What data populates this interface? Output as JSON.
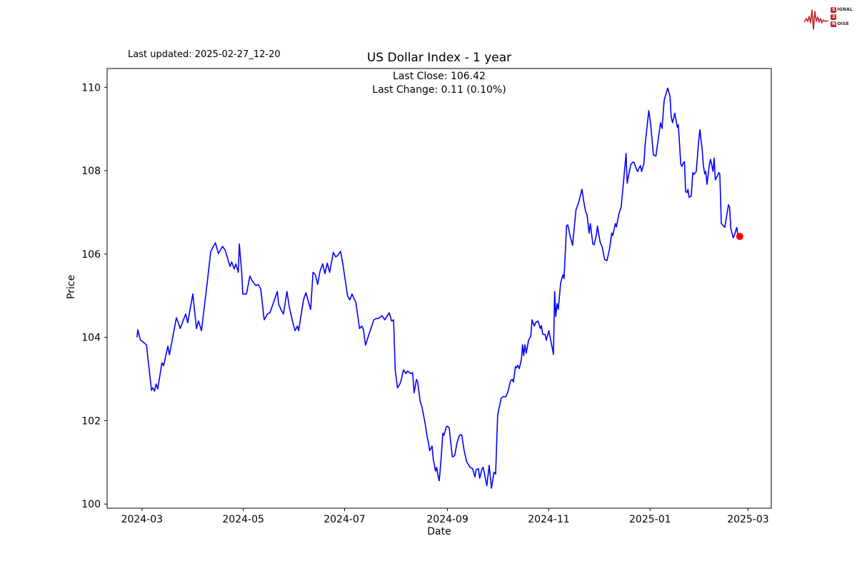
{
  "header": {
    "last_updated": "Last updated: 2025-02-27_12-20"
  },
  "logo": {
    "name": "signal-2-noise",
    "accent": "#c0272d",
    "row1_boxed": "S",
    "row1_rest": "IGNAL",
    "row2_boxed": "2",
    "row2_rest": "",
    "row3_boxed": "N",
    "row3_rest": "OISE"
  },
  "chart_data": {
    "type": "line",
    "title": "US Dollar Index - 1 year",
    "xlabel": "Date",
    "ylabel": "Price",
    "annotation_line1": "Last Close: 106.42",
    "annotation_line2": "Last Change: 0.11 (0.10%)",
    "grid": false,
    "legend": null,
    "background": "#ffffff",
    "line_color": "#0000ff",
    "x_unit": "days since 2024-02-27",
    "xlim_days": [
      -18,
      382
    ],
    "ylim": [
      99.9,
      110.45
    ],
    "y_ticks": [
      100,
      102,
      104,
      106,
      108,
      110
    ],
    "x_ticks": [
      {
        "t": 3,
        "label": "2024-03"
      },
      {
        "t": 64,
        "label": "2024-05"
      },
      {
        "t": 125,
        "label": "2024-07"
      },
      {
        "t": 187,
        "label": "2024-09"
      },
      {
        "t": 248,
        "label": "2024-11"
      },
      {
        "t": 309,
        "label": "2025-01"
      },
      {
        "t": 368,
        "label": "2025-03"
      }
    ],
    "last_point_marker": {
      "t": 363,
      "value": 106.42,
      "color": "#ff0000"
    },
    "series": [
      {
        "name": "US Dollar Index",
        "points": [
          [
            0,
            104.0
          ],
          [
            0.5,
            104.18
          ],
          [
            2,
            103.94
          ],
          [
            5.7,
            103.82
          ],
          [
            8.7,
            102.73
          ],
          [
            9.5,
            102.79
          ],
          [
            10.5,
            102.71
          ],
          [
            11.5,
            102.88
          ],
          [
            12.5,
            102.76
          ],
          [
            15,
            103.39
          ],
          [
            16,
            103.32
          ],
          [
            18.6,
            103.79
          ],
          [
            19.5,
            103.58
          ],
          [
            23.7,
            104.47
          ],
          [
            24.5,
            104.39
          ],
          [
            26,
            104.21
          ],
          [
            29.3,
            104.56
          ],
          [
            30.5,
            104.35
          ],
          [
            33.6,
            105.04
          ],
          [
            35.8,
            104.21
          ],
          [
            37,
            104.39
          ],
          [
            38.8,
            104.16
          ],
          [
            42.2,
            105.29
          ],
          [
            44.4,
            106.06
          ],
          [
            47.2,
            106.27
          ],
          [
            49,
            106.01
          ],
          [
            51.5,
            106.18
          ],
          [
            53,
            106.1
          ],
          [
            55,
            105.84
          ],
          [
            56,
            105.7
          ],
          [
            57,
            105.81
          ],
          [
            58.5,
            105.64
          ],
          [
            59.5,
            105.76
          ],
          [
            61,
            105.56
          ],
          [
            61.6,
            106.24
          ],
          [
            63,
            105.59
          ],
          [
            63.7,
            105.04
          ],
          [
            65.9,
            105.04
          ],
          [
            68,
            105.47
          ],
          [
            69.3,
            105.36
          ],
          [
            71.6,
            105.24
          ],
          [
            73,
            105.27
          ],
          [
            74.5,
            105.16
          ],
          [
            76.6,
            104.42
          ],
          [
            78.5,
            104.56
          ],
          [
            80,
            104.59
          ],
          [
            82,
            104.81
          ],
          [
            84.5,
            105.1
          ],
          [
            85.3,
            104.79
          ],
          [
            86.7,
            104.67
          ],
          [
            88.2,
            104.56
          ],
          [
            90.3,
            105.1
          ],
          [
            91.7,
            104.73
          ],
          [
            93.8,
            104.36
          ],
          [
            95.2,
            104.16
          ],
          [
            96.6,
            104.27
          ],
          [
            97.3,
            104.16
          ],
          [
            100.3,
            104.9
          ],
          [
            101.7,
            105.07
          ],
          [
            104.6,
            104.67
          ],
          [
            106,
            105.56
          ],
          [
            107.4,
            105.5
          ],
          [
            108.8,
            105.27
          ],
          [
            110.2,
            105.59
          ],
          [
            111.8,
            105.76
          ],
          [
            113.2,
            105.53
          ],
          [
            114.6,
            105.78
          ],
          [
            116,
            105.56
          ],
          [
            118.2,
            106.04
          ],
          [
            119.6,
            105.93
          ],
          [
            120.8,
            105.96
          ],
          [
            122.6,
            106.06
          ],
          [
            123.9,
            105.78
          ],
          [
            126.8,
            104.99
          ],
          [
            128.2,
            104.9
          ],
          [
            129.5,
            105.04
          ],
          [
            131.8,
            104.84
          ],
          [
            134,
            104.21
          ],
          [
            135.4,
            104.27
          ],
          [
            136.4,
            104.18
          ],
          [
            137.6,
            103.81
          ],
          [
            139.4,
            104.04
          ],
          [
            142.6,
            104.42
          ],
          [
            144,
            104.45
          ],
          [
            145.4,
            104.45
          ],
          [
            147.5,
            104.52
          ],
          [
            149.2,
            104.42
          ],
          [
            151.9,
            104.59
          ],
          [
            153.3,
            104.39
          ],
          [
            154.5,
            104.42
          ],
          [
            155.5,
            103.22
          ],
          [
            156.9,
            102.79
          ],
          [
            158.3,
            102.88
          ],
          [
            159,
            102.96
          ],
          [
            160.5,
            103.22
          ],
          [
            161.9,
            103.13
          ],
          [
            163,
            103.19
          ],
          [
            164.8,
            103.13
          ],
          [
            166,
            103.15
          ],
          [
            166.9,
            102.67
          ],
          [
            168.3,
            102.99
          ],
          [
            169,
            102.93
          ],
          [
            170.5,
            102.47
          ],
          [
            171.6,
            102.33
          ],
          [
            173.4,
            101.96
          ],
          [
            174.8,
            101.59
          ],
          [
            175.5,
            101.48
          ],
          [
            176.3,
            101.28
          ],
          [
            177.7,
            101.39
          ],
          [
            178.4,
            101.08
          ],
          [
            179.8,
            100.79
          ],
          [
            180.5,
            100.88
          ],
          [
            181.2,
            100.7
          ],
          [
            182,
            100.56
          ],
          [
            182.9,
            100.96
          ],
          [
            184.2,
            101.7
          ],
          [
            184.9,
            101.65
          ],
          [
            186.3,
            101.85
          ],
          [
            187,
            101.87
          ],
          [
            188,
            101.82
          ],
          [
            189.9,
            101.13
          ],
          [
            191.3,
            101.16
          ],
          [
            192.8,
            101.48
          ],
          [
            194.2,
            101.65
          ],
          [
            195.6,
            101.66
          ],
          [
            197,
            101.28
          ],
          [
            198.5,
            101.02
          ],
          [
            200.6,
            100.88
          ],
          [
            202.1,
            100.85
          ],
          [
            203.5,
            100.65
          ],
          [
            204.2,
            100.82
          ],
          [
            205.6,
            100.85
          ],
          [
            206.4,
            100.62
          ],
          [
            207.8,
            100.85
          ],
          [
            208.5,
            100.88
          ],
          [
            210.7,
            100.44
          ],
          [
            212.1,
            100.93
          ],
          [
            213.5,
            100.38
          ],
          [
            215,
            100.76
          ],
          [
            216,
            100.72
          ],
          [
            217.2,
            102.13
          ],
          [
            219.3,
            102.54
          ],
          [
            220.7,
            102.58
          ],
          [
            222.1,
            102.57
          ],
          [
            223.3,
            102.68
          ],
          [
            225,
            102.96
          ],
          [
            225.9,
            102.99
          ],
          [
            226.7,
            102.93
          ],
          [
            227.9,
            103.3
          ],
          [
            228.6,
            103.27
          ],
          [
            229.3,
            103.33
          ],
          [
            230.2,
            103.25
          ],
          [
            231.5,
            103.47
          ],
          [
            232.2,
            103.82
          ],
          [
            232.9,
            103.56
          ],
          [
            233.6,
            103.82
          ],
          [
            234.4,
            103.62
          ],
          [
            235.8,
            103.93
          ],
          [
            237.2,
            104.04
          ],
          [
            237.9,
            104.42
          ],
          [
            239.3,
            104.27
          ],
          [
            240,
            104.35
          ],
          [
            241.5,
            104.39
          ],
          [
            242.9,
            104.21
          ],
          [
            243.5,
            104.28
          ],
          [
            244.4,
            104.07
          ],
          [
            245.8,
            104.07
          ],
          [
            246.5,
            103.93
          ],
          [
            248,
            104.16
          ],
          [
            250,
            103.76
          ],
          [
            250.8,
            103.59
          ],
          [
            251.5,
            105.1
          ],
          [
            252.2,
            104.5
          ],
          [
            253,
            104.81
          ],
          [
            253.7,
            104.67
          ],
          [
            255.1,
            105.3
          ],
          [
            256.5,
            105.5
          ],
          [
            257.2,
            105.41
          ],
          [
            258.7,
            106.67
          ],
          [
            259.4,
            106.7
          ],
          [
            260.8,
            106.44
          ],
          [
            262.3,
            106.21
          ],
          [
            264.4,
            107.07
          ],
          [
            265.8,
            107.21
          ],
          [
            268,
            107.55
          ],
          [
            269,
            107.27
          ],
          [
            270.2,
            107.01
          ],
          [
            271,
            106.95
          ],
          [
            272.3,
            106.5
          ],
          [
            273,
            106.73
          ],
          [
            274.5,
            106.24
          ],
          [
            275.3,
            106.22
          ],
          [
            276.6,
            106.44
          ],
          [
            277.3,
            106.67
          ],
          [
            278.8,
            106.3
          ],
          [
            280.2,
            106.16
          ],
          [
            281.6,
            105.87
          ],
          [
            283,
            105.84
          ],
          [
            284.5,
            106.1
          ],
          [
            285.9,
            106.5
          ],
          [
            286.5,
            106.44
          ],
          [
            288.1,
            106.73
          ],
          [
            288.7,
            106.65
          ],
          [
            290.2,
            106.96
          ],
          [
            291.6,
            107.13
          ],
          [
            293,
            107.73
          ],
          [
            294.5,
            108.41
          ],
          [
            295.2,
            107.7
          ],
          [
            295.9,
            107.85
          ],
          [
            297.4,
            108.15
          ],
          [
            298.8,
            108.21
          ],
          [
            299.4,
            108.19
          ],
          [
            301,
            108.01
          ],
          [
            301.6,
            107.98
          ],
          [
            302.4,
            108.07
          ],
          [
            303.2,
            108.12
          ],
          [
            303.9,
            107.98
          ],
          [
            305.3,
            108.18
          ],
          [
            306,
            108.61
          ],
          [
            308.2,
            109.44
          ],
          [
            309.4,
            109.1
          ],
          [
            311,
            108.38
          ],
          [
            312.5,
            108.35
          ],
          [
            315.3,
            109.15
          ],
          [
            316.2,
            109.01
          ],
          [
            317.5,
            109.69
          ],
          [
            319.6,
            109.98
          ],
          [
            321,
            109.78
          ],
          [
            321.7,
            109.29
          ],
          [
            322.5,
            109.15
          ],
          [
            323.9,
            109.38
          ],
          [
            325.4,
            109.04
          ],
          [
            326,
            109.1
          ],
          [
            327.5,
            108.15
          ],
          [
            328.2,
            108.1
          ],
          [
            329,
            108.19
          ],
          [
            329.7,
            108.21
          ],
          [
            330.4,
            107.5
          ],
          [
            331.1,
            107.47
          ],
          [
            331.8,
            107.55
          ],
          [
            332.5,
            107.36
          ],
          [
            333.8,
            107.39
          ],
          [
            334.7,
            107.95
          ],
          [
            335.4,
            107.91
          ],
          [
            336.8,
            107.98
          ],
          [
            338.3,
            108.72
          ],
          [
            339,
            108.98
          ],
          [
            340.4,
            108.49
          ],
          [
            341.1,
            108.12
          ],
          [
            341.9,
            107.92
          ],
          [
            342.5,
            107.98
          ],
          [
            343.3,
            107.67
          ],
          [
            344.7,
            108.15
          ],
          [
            345.4,
            108.27
          ],
          [
            346.9,
            107.98
          ],
          [
            347.6,
            108.3
          ],
          [
            348.3,
            107.78
          ],
          [
            349.7,
            107.89
          ],
          [
            350.4,
            107.95
          ],
          [
            351,
            107.93
          ],
          [
            351.9,
            106.73
          ],
          [
            353.3,
            106.67
          ],
          [
            354,
            106.64
          ],
          [
            356.2,
            107.18
          ],
          [
            356.9,
            107.12
          ],
          [
            357.6,
            106.61
          ],
          [
            358.4,
            106.5
          ],
          [
            359,
            106.39
          ],
          [
            359.7,
            106.44
          ],
          [
            361.2,
            106.64
          ],
          [
            361.9,
            106.44
          ],
          [
            363,
            106.42
          ]
        ]
      }
    ]
  }
}
